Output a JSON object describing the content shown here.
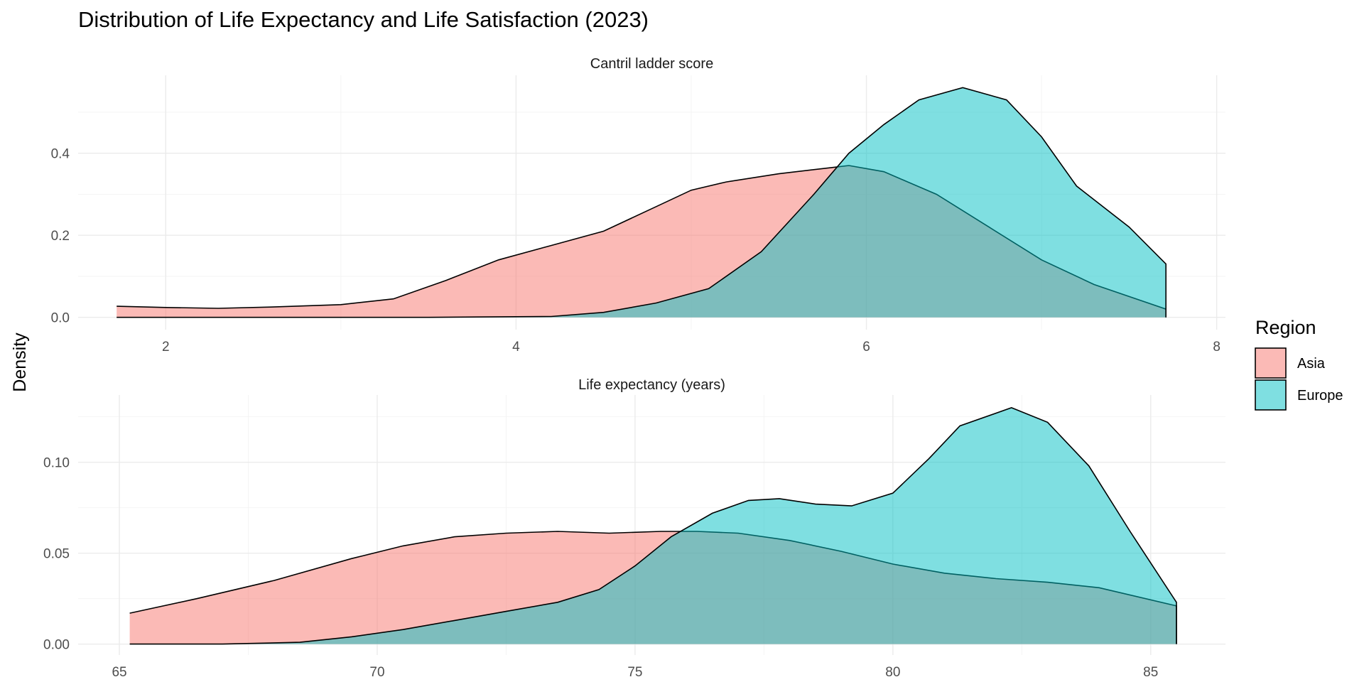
{
  "chart_data": {
    "type": "area",
    "title": "Distribution of Life Expectancy and Life Satisfaction (2023)",
    "ylabel": "Density",
    "legend": {
      "title": "Region",
      "placement": "right",
      "entries": [
        {
          "name": "Asia",
          "color": "#F8766D"
        },
        {
          "name": "Europe",
          "color": "#00BFC4"
        }
      ]
    },
    "fill_opacity": 0.5,
    "grid": true,
    "panels": [
      {
        "strip_label": "Cantril ladder score",
        "xlim": [
          1.5,
          8.05
        ],
        "ylim": [
          -0.03,
          0.59
        ],
        "x_ticks": [
          2,
          4,
          6,
          8
        ],
        "y_ticks": [
          0.0,
          0.2,
          0.4
        ],
        "y_tick_labels": [
          "0.0",
          "0.2",
          "0.4"
        ],
        "series": [
          {
            "name": "Asia",
            "x": [
              1.72,
              2.0,
              2.3,
              2.6,
              3.0,
              3.3,
              3.6,
              3.9,
              4.2,
              4.5,
              4.8,
              5.0,
              5.2,
              5.5,
              5.8,
              5.9,
              6.1,
              6.4,
              6.7,
              7.0,
              7.3,
              7.71
            ],
            "y": [
              0.027,
              0.024,
              0.022,
              0.025,
              0.031,
              0.045,
              0.09,
              0.14,
              0.175,
              0.21,
              0.27,
              0.31,
              0.33,
              0.35,
              0.365,
              0.37,
              0.355,
              0.3,
              0.22,
              0.14,
              0.08,
              0.02
            ]
          },
          {
            "name": "Europe",
            "x": [
              1.72,
              3.5,
              4.2,
              4.5,
              4.8,
              5.1,
              5.4,
              5.7,
              5.9,
              6.1,
              6.3,
              6.55,
              6.8,
              7.0,
              7.2,
              7.5,
              7.71
            ],
            "y": [
              0.0,
              0.0,
              0.002,
              0.012,
              0.035,
              0.07,
              0.16,
              0.3,
              0.4,
              0.47,
              0.53,
              0.56,
              0.53,
              0.44,
              0.32,
              0.22,
              0.13
            ]
          }
        ]
      },
      {
        "strip_label": "Life expectancy (years)",
        "xlim": [
          64.2,
          86.45
        ],
        "ylim": [
          -0.006,
          0.137
        ],
        "x_ticks": [
          65,
          70,
          75,
          80,
          85
        ],
        "y_ticks": [
          0.0,
          0.05,
          0.1
        ],
        "y_tick_labels": [
          "0.00",
          "0.05",
          "0.10"
        ],
        "series": [
          {
            "name": "Asia",
            "x": [
              65.2,
              66.5,
              68,
              69.5,
              70.5,
              71.5,
              72.5,
              73.5,
              74.5,
              75.5,
              76.2,
              77,
              78,
              79,
              80,
              81,
              82,
              83,
              84,
              85.5
            ],
            "y": [
              0.017,
              0.025,
              0.035,
              0.047,
              0.054,
              0.059,
              0.061,
              0.062,
              0.061,
              0.062,
              0.062,
              0.061,
              0.057,
              0.051,
              0.044,
              0.039,
              0.036,
              0.034,
              0.031,
              0.021
            ]
          },
          {
            "name": "Europe",
            "x": [
              65.2,
              67,
              68.5,
              69.5,
              70.5,
              71.5,
              72.5,
              73.5,
              74.3,
              75,
              75.7,
              76.5,
              77.2,
              77.8,
              78.5,
              79.2,
              80,
              80.7,
              81.3,
              82.3,
              83,
              83.8,
              84.6,
              85.5
            ],
            "y": [
              0.0,
              0.0,
              0.001,
              0.004,
              0.008,
              0.013,
              0.018,
              0.023,
              0.03,
              0.043,
              0.059,
              0.072,
              0.079,
              0.08,
              0.077,
              0.076,
              0.083,
              0.102,
              0.12,
              0.13,
              0.122,
              0.098,
              0.062,
              0.023
            ]
          }
        ]
      }
    ]
  }
}
